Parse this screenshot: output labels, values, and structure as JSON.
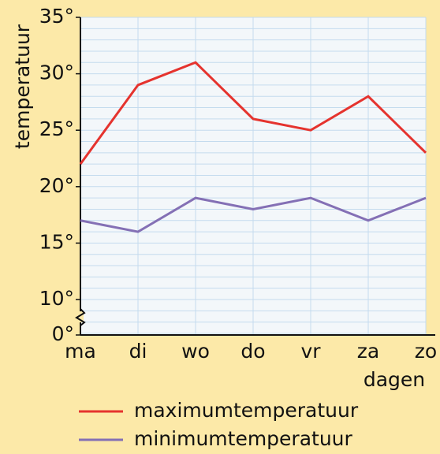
{
  "chart_data": {
    "type": "line",
    "x_label": "dagen",
    "y_label": "temperatuur",
    "categories": [
      "ma",
      "di",
      "wo",
      "do",
      "vr",
      "za",
      "zo"
    ],
    "series": [
      {
        "name": "maximumtemperatuur",
        "color": "#e5332e",
        "values": [
          22,
          29,
          31,
          26,
          25,
          28,
          23
        ]
      },
      {
        "name": "minimumtemperatuur",
        "color": "#8470b5",
        "values": [
          17,
          16,
          19,
          18,
          19,
          17,
          19
        ]
      }
    ],
    "ylim": [
      10,
      35
    ],
    "axis_break": true,
    "yticks": [
      {
        "value": 0,
        "label": "0°"
      },
      {
        "value": 10,
        "label": "10°"
      },
      {
        "value": 15,
        "label": "15°"
      },
      {
        "value": 20,
        "label": "20°"
      },
      {
        "value": 25,
        "label": "25°"
      },
      {
        "value": 30,
        "label": "30°"
      },
      {
        "value": 35,
        "label": "35°"
      }
    ],
    "grid": true
  }
}
